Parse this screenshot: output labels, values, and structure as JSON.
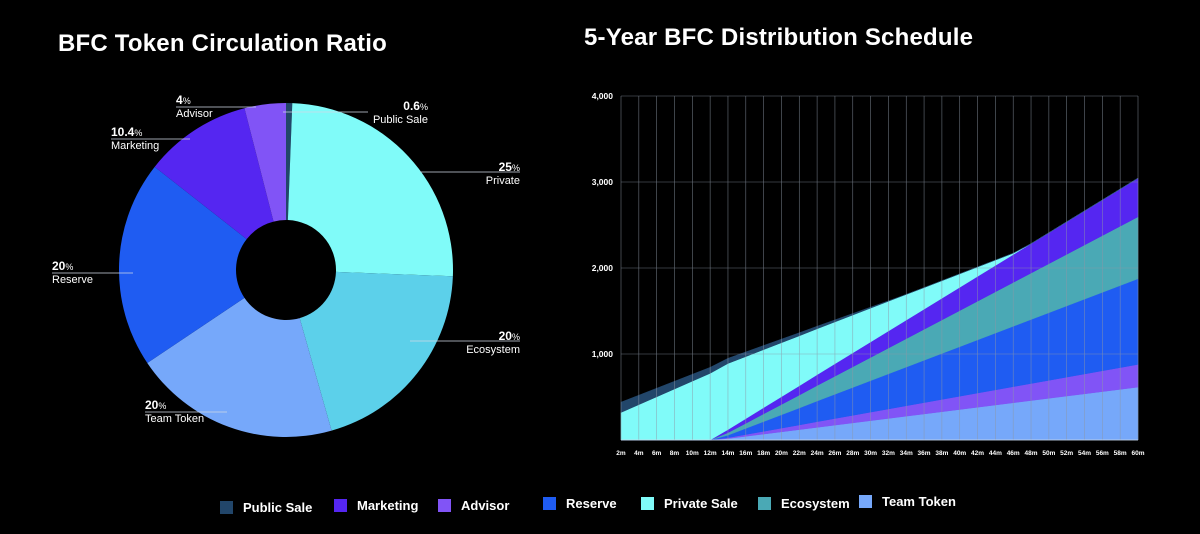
{
  "chart_data": [
    {
      "type": "pie",
      "title": "BFC Token Circulation Ratio",
      "slices": [
        {
          "label": "Public Sale",
          "value": 0.6,
          "value_text": "0.6",
          "color": "#22466a"
        },
        {
          "label": "Private",
          "value": 25,
          "value_text": "25",
          "color": "#80fbf9"
        },
        {
          "label": "Ecosystem",
          "value": 20,
          "value_text": "20",
          "color": "#5cd0ea"
        },
        {
          "label": "Team Token",
          "value": 20,
          "value_text": "20",
          "color": "#76a8fa"
        },
        {
          "label": "Reserve",
          "value": 20,
          "value_text": "20",
          "color": "#1f5cf2"
        },
        {
          "label": "Marketing",
          "value": 10.4,
          "value_text": "10.4",
          "color": "#5526f1"
        },
        {
          "label": "Advisor",
          "value": 4,
          "value_text": "4",
          "color": "#8154f6"
        }
      ],
      "percent_symbol": "%"
    },
    {
      "type": "area",
      "title": "5-Year BFC Distribution Schedule",
      "x": [
        "2m",
        "4m",
        "6m",
        "8m",
        "10m",
        "12m",
        "14m",
        "16m",
        "18m",
        "20m",
        "22m",
        "24m",
        "26m",
        "28m",
        "30m",
        "32m",
        "34m",
        "36m",
        "38m",
        "40m",
        "42m",
        "44m",
        "46m",
        "48m",
        "50m",
        "52m",
        "54m",
        "56m",
        "58m",
        "60m"
      ],
      "y_ticks": [
        "1,000",
        "2,000",
        "3,000",
        "4,000"
      ],
      "ylim": [
        0,
        4000
      ],
      "grid": true,
      "stacked": true,
      "series": [
        {
          "name": "Team Token",
          "color": "#76a8fa",
          "values": [
            0,
            0,
            0,
            0,
            0,
            0,
            17,
            43,
            69,
            95,
            121,
            147,
            173,
            199,
            225,
            251,
            277,
            303,
            329,
            355,
            381,
            407,
            433,
            459,
            485,
            511,
            537,
            563,
            589,
            615
          ]
        },
        {
          "name": "Advisor",
          "color": "#8154f6",
          "values": [
            0,
            0,
            0,
            0,
            0,
            0,
            10,
            21,
            32,
            43,
            54,
            66,
            77,
            88,
            99,
            110,
            121,
            132,
            143,
            154,
            165,
            176,
            187,
            198,
            209,
            220,
            231,
            242,
            253,
            264
          ]
        },
        {
          "name": "Reserve",
          "color": "#1f5cf2",
          "values": [
            0,
            0,
            0,
            0,
            0,
            0,
            29,
            71,
            113,
            155,
            197,
            240,
            282,
            324,
            366,
            408,
            450,
            492,
            534,
            576,
            618,
            660,
            702,
            744,
            786,
            828,
            870,
            912,
            954,
            996
          ]
        },
        {
          "name": "Ecosystem",
          "color": "#4aa9b5",
          "values": [
            0,
            0,
            0,
            0,
            0,
            0,
            29,
            59,
            90,
            120,
            150,
            180,
            210,
            240,
            270,
            300,
            330,
            360,
            390,
            420,
            450,
            480,
            510,
            540,
            570,
            600,
            630,
            660,
            690,
            720
          ]
        },
        {
          "name": "Marketing",
          "color": "#5526f1",
          "values": [
            0,
            0,
            0,
            0,
            0,
            0,
            36,
            54,
            72,
            90,
            108,
            126,
            144,
            162,
            180,
            198,
            216,
            234,
            252,
            270,
            288,
            306,
            324,
            342,
            360,
            378,
            396,
            414,
            432,
            450
          ]
        },
        {
          "name": "Private Sale",
          "color": "#80fbf9",
          "values": [
            320,
            411,
            502,
            593,
            684,
            775,
            769,
            722,
            675,
            628,
            581,
            534,
            487,
            440,
            393,
            346,
            299,
            251,
            204,
            157,
            110,
            63,
            16,
            0,
            0,
            0,
            0,
            0,
            0,
            0
          ]
        },
        {
          "name": "Public Sale",
          "color": "#22466a",
          "values": [
            120,
            110,
            100,
            90,
            80,
            70,
            60,
            54,
            48,
            42,
            36,
            30,
            24,
            18,
            12,
            6,
            0,
            0,
            0,
            0,
            0,
            0,
            0,
            0,
            0,
            0,
            0,
            0,
            0,
            0
          ]
        }
      ]
    }
  ],
  "legend": [
    {
      "label": "Public Sale",
      "color": "#22466a"
    },
    {
      "label": "Marketing",
      "color": "#5526f1"
    },
    {
      "label": "Advisor",
      "color": "#8154f6"
    },
    {
      "label": "Reserve",
      "color": "#1f5cf2"
    },
    {
      "label": "Private Sale",
      "color": "#80fbf9"
    },
    {
      "label": "Ecosystem",
      "color": "#4aa9b5"
    },
    {
      "label": "Team Token",
      "color": "#76a8fa"
    }
  ]
}
